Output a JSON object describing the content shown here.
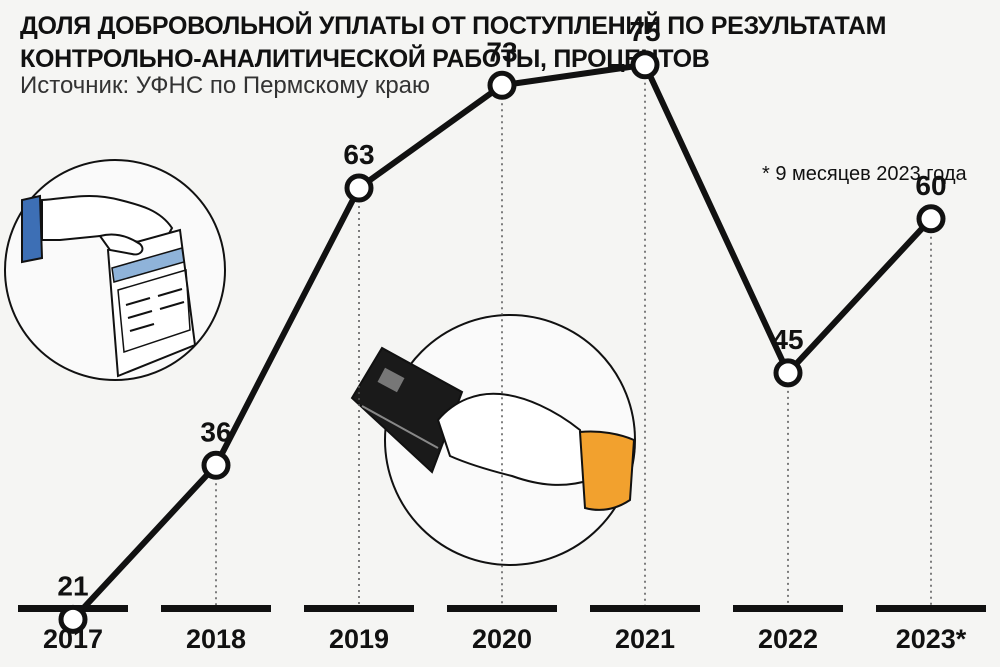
{
  "header": {
    "title": "ДОЛЯ ДОБРОВОЛЬНОЙ УПЛАТЫ ОТ ПОСТУПЛЕНИЙ ПО РЕЗУЛЬТАТАМ КОНТРОЛЬНО-АНАЛИТИЧЕСКОЙ РАБОТЫ, ПРОЦЕНТОВ",
    "source": "Источник: УФНС по Пермскому краю",
    "footnote": "* 9 месяцев 2023 года"
  },
  "colors": {
    "line": "#111111",
    "marker_fill": "#ffffff",
    "sleeve_blue": "#3d6fb5",
    "sleeve_orange": "#f2a12e",
    "card": "#1a1a1a",
    "document_stripe": "#8fb3d9"
  },
  "chart_data": {
    "type": "line",
    "title": "ДОЛЯ ДОБРОВОЛЬНОЙ УПЛАТЫ ОТ ПОСТУПЛЕНИЙ ПО РЕЗУЛЬТАТАМ КОНТРОЛЬНО-АНАЛИТИЧЕСКОЙ РАБОТЫ, ПРОЦЕНТОВ",
    "categories": [
      "2017",
      "2018",
      "2019",
      "2020",
      "2021",
      "2022",
      "2023*"
    ],
    "values": [
      21,
      36,
      63,
      73,
      75,
      45,
      60
    ],
    "ylim": [
      0,
      100
    ],
    "grid": false,
    "data_labels": [
      "21",
      "36",
      "63",
      "73",
      "75",
      "45",
      "60"
    ]
  }
}
